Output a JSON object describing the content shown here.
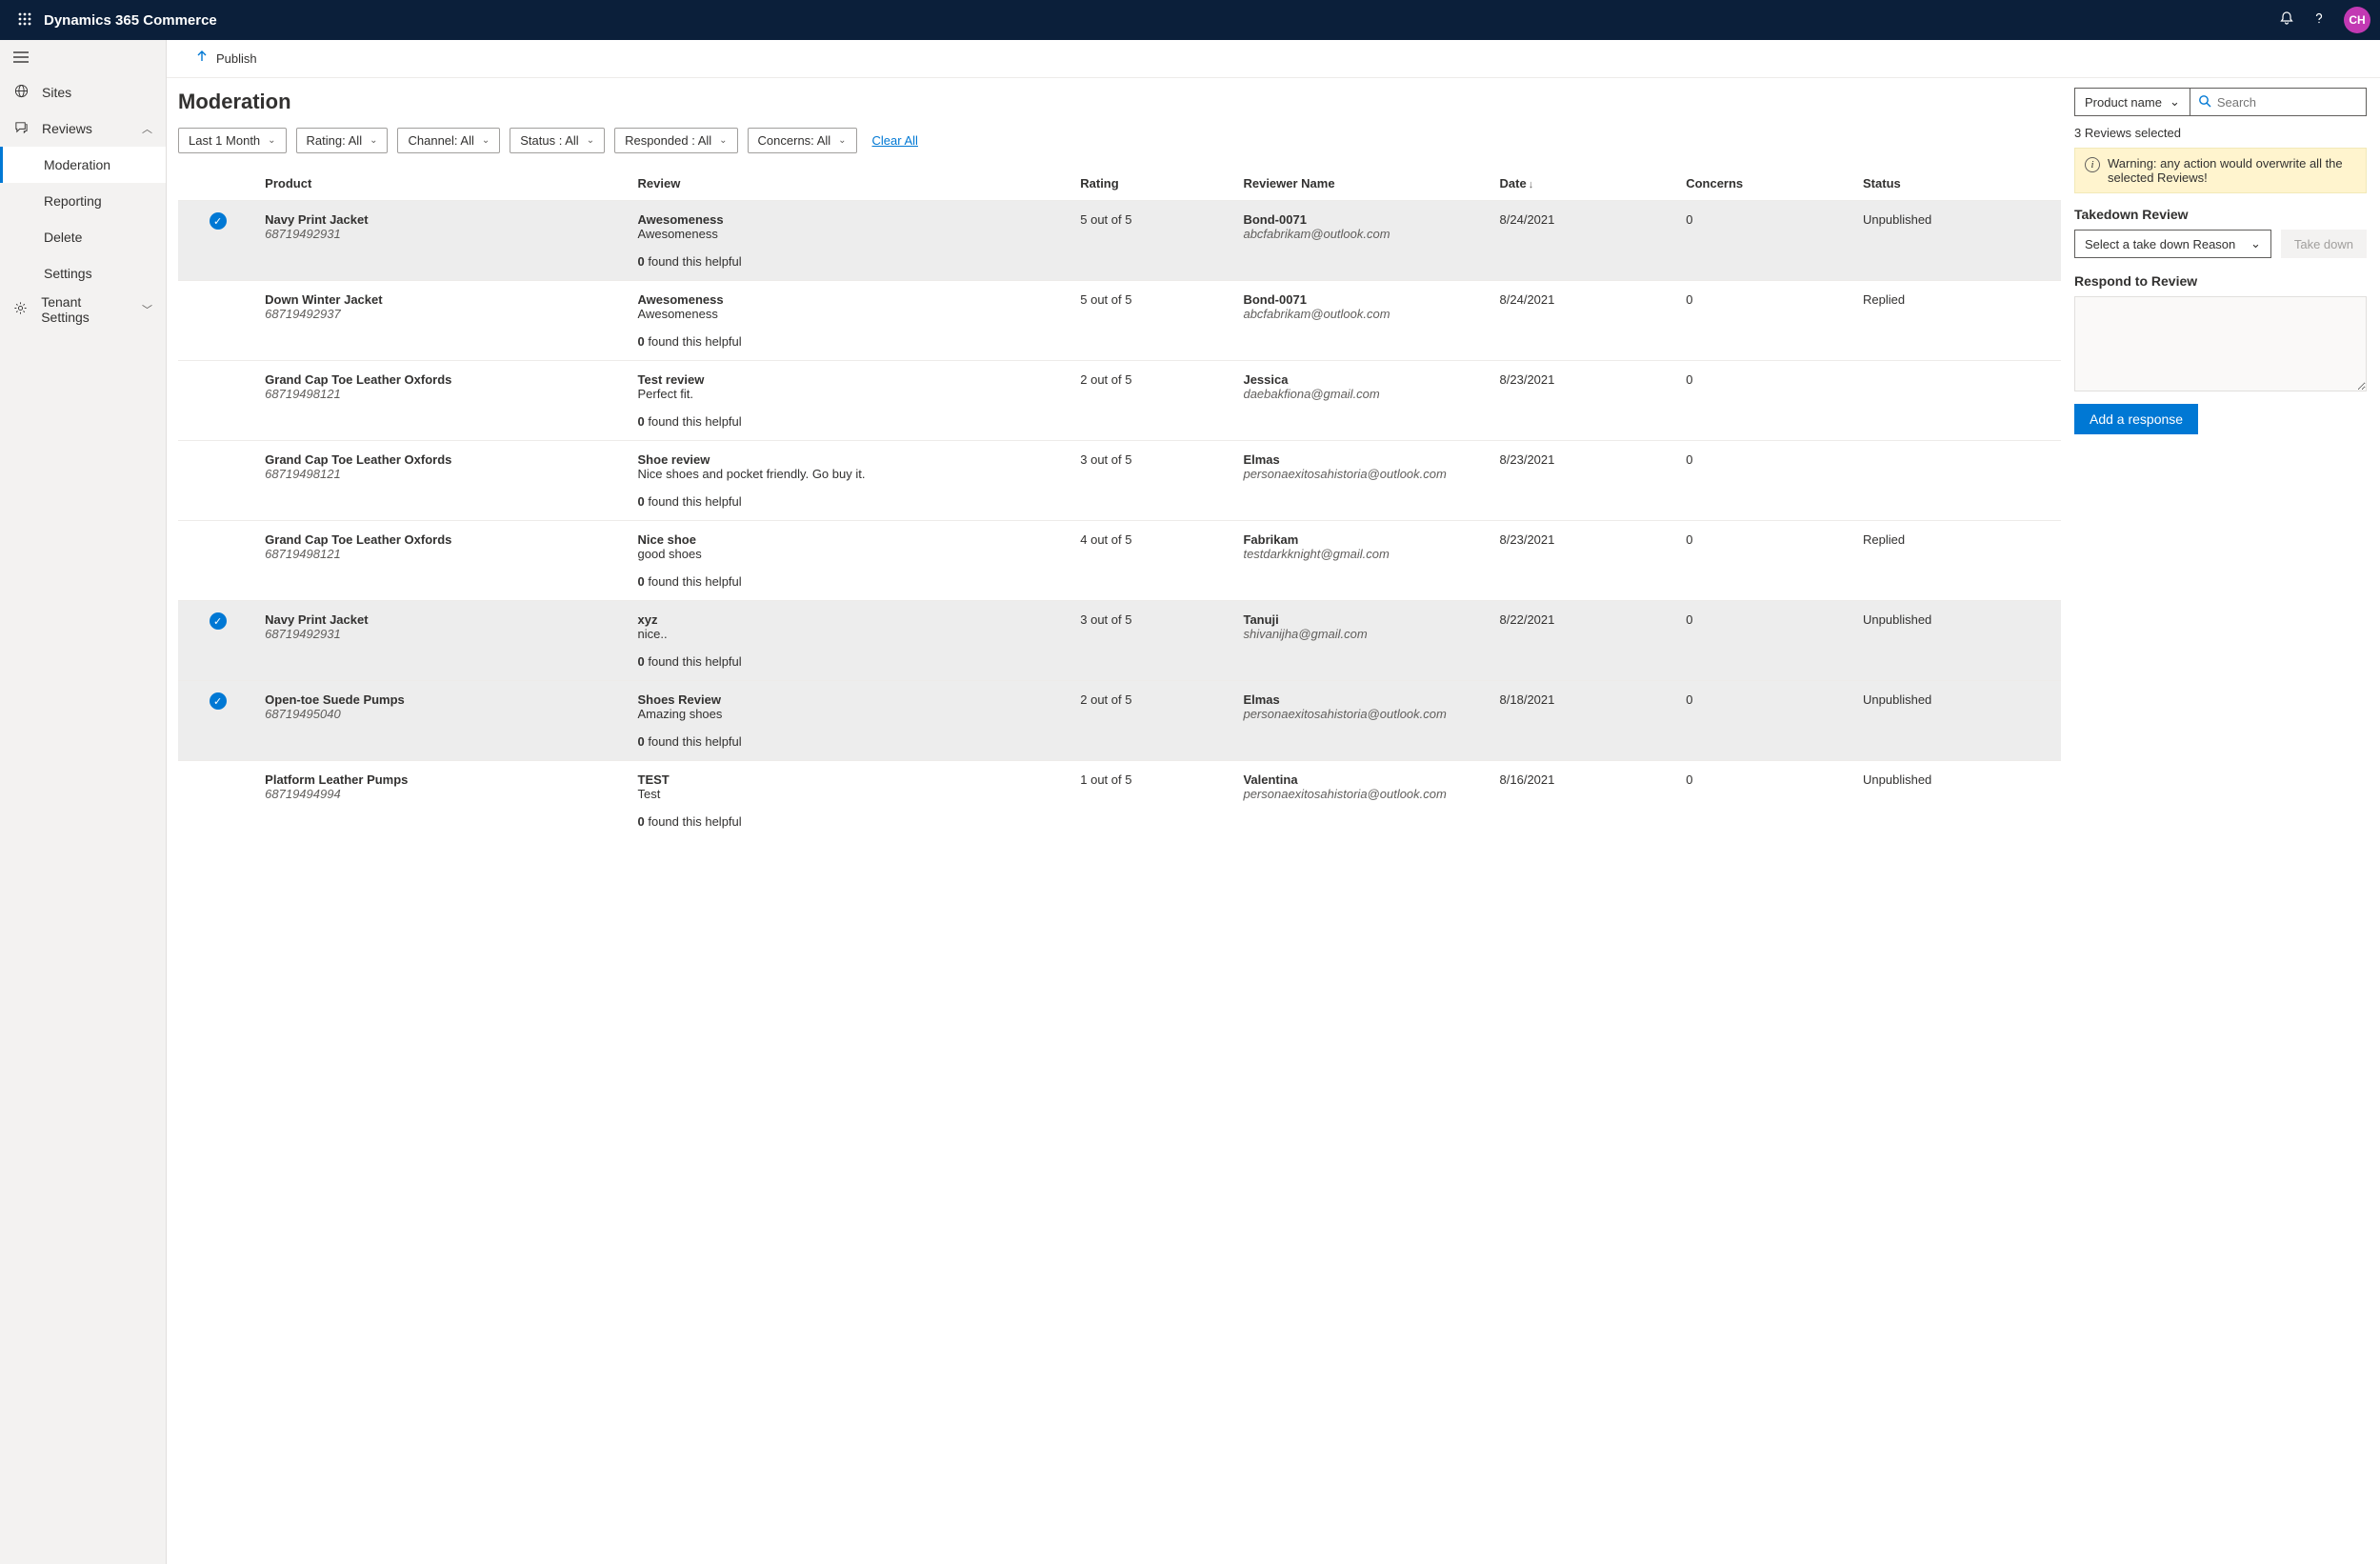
{
  "app": {
    "title": "Dynamics 365 Commerce",
    "avatar": "CH"
  },
  "publish": {
    "label": "Publish"
  },
  "nav": {
    "sites": "Sites",
    "reviews": "Reviews",
    "moderation": "Moderation",
    "reporting": "Reporting",
    "delete": "Delete",
    "settings": "Settings",
    "tenant": "Tenant Settings"
  },
  "page": {
    "title": "Moderation"
  },
  "filters": {
    "range": "Last 1 Month",
    "rating": "Rating: All",
    "channel": "Channel: All",
    "status": "Status : All",
    "responded": "Responded : All",
    "concerns": "Concerns: All",
    "clear": "Clear All"
  },
  "columns": {
    "product": "Product",
    "review": "Review",
    "rating": "Rating",
    "reviewer": "Reviewer Name",
    "date": "Date",
    "concerns": "Concerns",
    "status": "Status"
  },
  "rows": [
    {
      "selected": true,
      "product": "Navy Print Jacket",
      "sku": "68719492931",
      "title": "Awesomeness",
      "body": "Awesomeness",
      "helpful": "0",
      "helpful_suffix": " found this helpful",
      "rating": "5 out of 5",
      "reviewer": "Bond-0071",
      "email": "abcfabrikam@outlook.com",
      "date": "8/24/2021",
      "concerns": "0",
      "status": "Unpublished"
    },
    {
      "selected": false,
      "product": "Down Winter Jacket",
      "sku": "68719492937",
      "title": "Awesomeness",
      "body": "Awesomeness",
      "helpful": "0",
      "helpful_suffix": " found this helpful",
      "rating": "5 out of 5",
      "reviewer": "Bond-0071",
      "email": "abcfabrikam@outlook.com",
      "date": "8/24/2021",
      "concerns": "0",
      "status": "Replied"
    },
    {
      "selected": false,
      "product": "Grand Cap Toe Leather Oxfords",
      "sku": "68719498121",
      "title": "Test review",
      "body": "Perfect fit.",
      "helpful": "0",
      "helpful_suffix": " found this helpful",
      "rating": "2 out of 5",
      "reviewer": "Jessica",
      "email": "daebakfiona@gmail.com",
      "date": "8/23/2021",
      "concerns": "0",
      "status": ""
    },
    {
      "selected": false,
      "product": "Grand Cap Toe Leather Oxfords",
      "sku": "68719498121",
      "title": "Shoe review",
      "body": "Nice shoes and pocket friendly. Go buy it.",
      "helpful": "0",
      "helpful_suffix": " found this helpful",
      "rating": "3 out of 5",
      "reviewer": "Elmas",
      "email": "personaexitosahistoria@outlook.com",
      "date": "8/23/2021",
      "concerns": "0",
      "status": ""
    },
    {
      "selected": false,
      "product": "Grand Cap Toe Leather Oxfords",
      "sku": "68719498121",
      "title": "Nice shoe",
      "body": "good shoes",
      "helpful": "0",
      "helpful_suffix": " found this helpful",
      "rating": "4 out of 5",
      "reviewer": "Fabrikam",
      "email": "testdarkknight@gmail.com",
      "date": "8/23/2021",
      "concerns": "0",
      "status": "Replied"
    },
    {
      "selected": true,
      "product": "Navy Print Jacket",
      "sku": "68719492931",
      "title": "xyz",
      "body": "nice..",
      "helpful": "0",
      "helpful_suffix": " found this helpful",
      "rating": "3 out of 5",
      "reviewer": "Tanuji",
      "email": "shivanijha@gmail.com",
      "date": "8/22/2021",
      "concerns": "0",
      "status": "Unpublished"
    },
    {
      "selected": true,
      "product": "Open-toe Suede Pumps",
      "sku": "68719495040",
      "title": "Shoes Review",
      "body": "Amazing shoes",
      "helpful": "0",
      "helpful_suffix": " found this helpful",
      "rating": "2 out of 5",
      "reviewer": "Elmas",
      "email": "personaexitosahistoria@outlook.com",
      "date": "8/18/2021",
      "concerns": "0",
      "status": "Unpublished"
    },
    {
      "selected": false,
      "product": "Platform Leather Pumps",
      "sku": "68719494994",
      "title": "TEST",
      "body": "Test",
      "helpful": "0",
      "helpful_suffix": " found this helpful",
      "rating": "1 out of 5",
      "reviewer": "Valentina",
      "email": "personaexitosahistoria@outlook.com",
      "date": "8/16/2021",
      "concerns": "0",
      "status": "Unpublished"
    }
  ],
  "right": {
    "searchScope": "Product name",
    "searchPlaceholder": "Search",
    "selectedText": "3 Reviews selected",
    "warning": "Warning: any action would overwrite all the selected Reviews!",
    "takedownTitle": "Takedown Review",
    "takedownPlaceholder": "Select a take down Reason",
    "takedownBtn": "Take down",
    "respondTitle": "Respond to Review",
    "addResponse": "Add a response"
  }
}
